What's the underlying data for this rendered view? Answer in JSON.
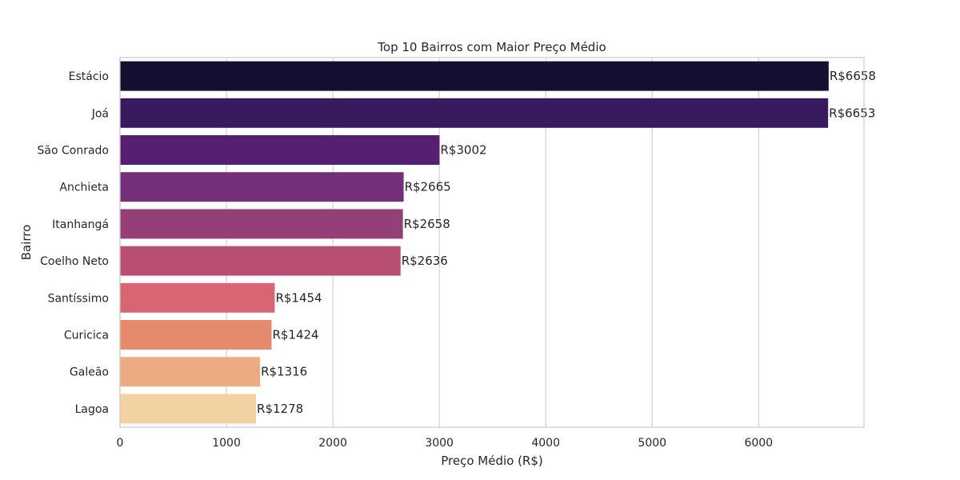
{
  "chart_data": {
    "type": "bar",
    "orientation": "horizontal",
    "title": "Top 10 Bairros com Maior Preço Médio",
    "xlabel": "Preço Médio (R$)",
    "ylabel": "Bairro",
    "xlim": [
      0,
      6990
    ],
    "xticks": [
      0,
      1000,
      2000,
      3000,
      4000,
      5000,
      6000
    ],
    "grid": "vertical",
    "categories": [
      "Estácio",
      "Joá",
      "São Conrado",
      "Anchieta",
      "Itanhangá",
      "Coelho Neto",
      "Santíssimo",
      "Curicica",
      "Galeão",
      "Lagoa"
    ],
    "values": [
      6658,
      6653,
      3002,
      2665,
      2658,
      2636,
      1454,
      1424,
      1316,
      1278
    ],
    "data_labels": [
      "R$6658",
      "R$6653",
      "R$3002",
      "R$2665",
      "R$2658",
      "R$2636",
      "R$1454",
      "R$1424",
      "R$1316",
      "R$1278"
    ],
    "colors": [
      "#160f31",
      "#381a5e",
      "#561f72",
      "#732f78",
      "#943f78",
      "#b84e74",
      "#d86571",
      "#e68a6e",
      "#edab84",
      "#f2d2a2"
    ]
  }
}
